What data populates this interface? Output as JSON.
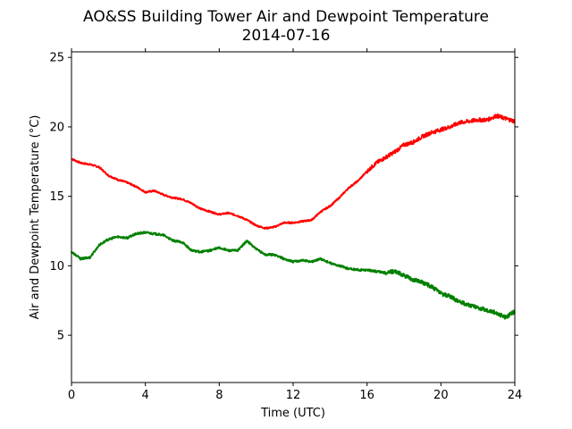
{
  "chart_data": {
    "type": "line",
    "title": "AO&SS Building Tower Air and Dewpoint Temperature",
    "subtitle": "2014-07-16",
    "xlabel": "Time (UTC)",
    "ylabel": "Air and Dewpoint Temperature (°C)",
    "xlim": [
      0,
      24
    ],
    "ylim": [
      1.6,
      25.4
    ],
    "xticks": [
      0,
      4,
      8,
      12,
      16,
      20,
      24
    ],
    "yticks": [
      5,
      10,
      15,
      20,
      25
    ],
    "grid": false,
    "legend": "none",
    "series": [
      {
        "color": "#ff0000",
        "x": [
          0,
          0.5,
          1,
          1.5,
          2,
          2.5,
          3,
          3.5,
          4,
          4.5,
          5,
          5.5,
          6,
          6.5,
          7,
          7.5,
          8,
          8.5,
          9,
          9.5,
          10,
          10.5,
          11,
          11.5,
          12,
          12.5,
          13,
          13.5,
          14,
          14.5,
          15,
          15.5,
          16,
          16.5,
          17,
          17.5,
          18,
          18.5,
          19,
          19.5,
          20,
          20.5,
          21,
          21.5,
          22,
          22.5,
          23,
          23.5,
          24
        ],
        "y": [
          17.7,
          17.4,
          17.3,
          17.1,
          16.5,
          16.2,
          16.0,
          15.7,
          15.3,
          15.4,
          15.1,
          14.9,
          14.8,
          14.5,
          14.1,
          13.9,
          13.7,
          13.8,
          13.6,
          13.3,
          12.9,
          12.7,
          12.8,
          13.1,
          13.1,
          13.2,
          13.3,
          13.9,
          14.3,
          14.9,
          15.6,
          16.1,
          16.8,
          17.4,
          17.8,
          18.2,
          18.7,
          18.9,
          19.3,
          19.6,
          19.8,
          20.0,
          20.3,
          20.4,
          20.5,
          20.5,
          20.8,
          20.6,
          20.4
        ]
      },
      {
        "color": "#008000",
        "x": [
          0,
          0.5,
          1,
          1.5,
          2,
          2.5,
          3,
          3.5,
          4,
          4.5,
          5,
          5.5,
          6,
          6.5,
          7,
          7.5,
          8,
          8.5,
          9,
          9.5,
          10,
          10.5,
          11,
          11.5,
          12,
          12.5,
          13,
          13.5,
          14,
          14.5,
          15,
          15.5,
          16,
          16.5,
          17,
          17.5,
          18,
          18.5,
          19,
          19.5,
          20,
          20.5,
          21,
          21.5,
          22,
          22.5,
          23,
          23.5,
          24
        ],
        "y": [
          11.0,
          10.5,
          10.6,
          11.5,
          11.9,
          12.1,
          12.0,
          12.3,
          12.4,
          12.3,
          12.2,
          11.8,
          11.7,
          11.1,
          11.0,
          11.1,
          11.3,
          11.1,
          11.1,
          11.8,
          11.2,
          10.8,
          10.8,
          10.5,
          10.3,
          10.4,
          10.3,
          10.5,
          10.2,
          10.0,
          9.8,
          9.7,
          9.7,
          9.6,
          9.5,
          9.6,
          9.3,
          9.0,
          8.8,
          8.5,
          8.0,
          7.8,
          7.4,
          7.2,
          7.0,
          6.8,
          6.6,
          6.3,
          6.7
        ]
      }
    ]
  }
}
